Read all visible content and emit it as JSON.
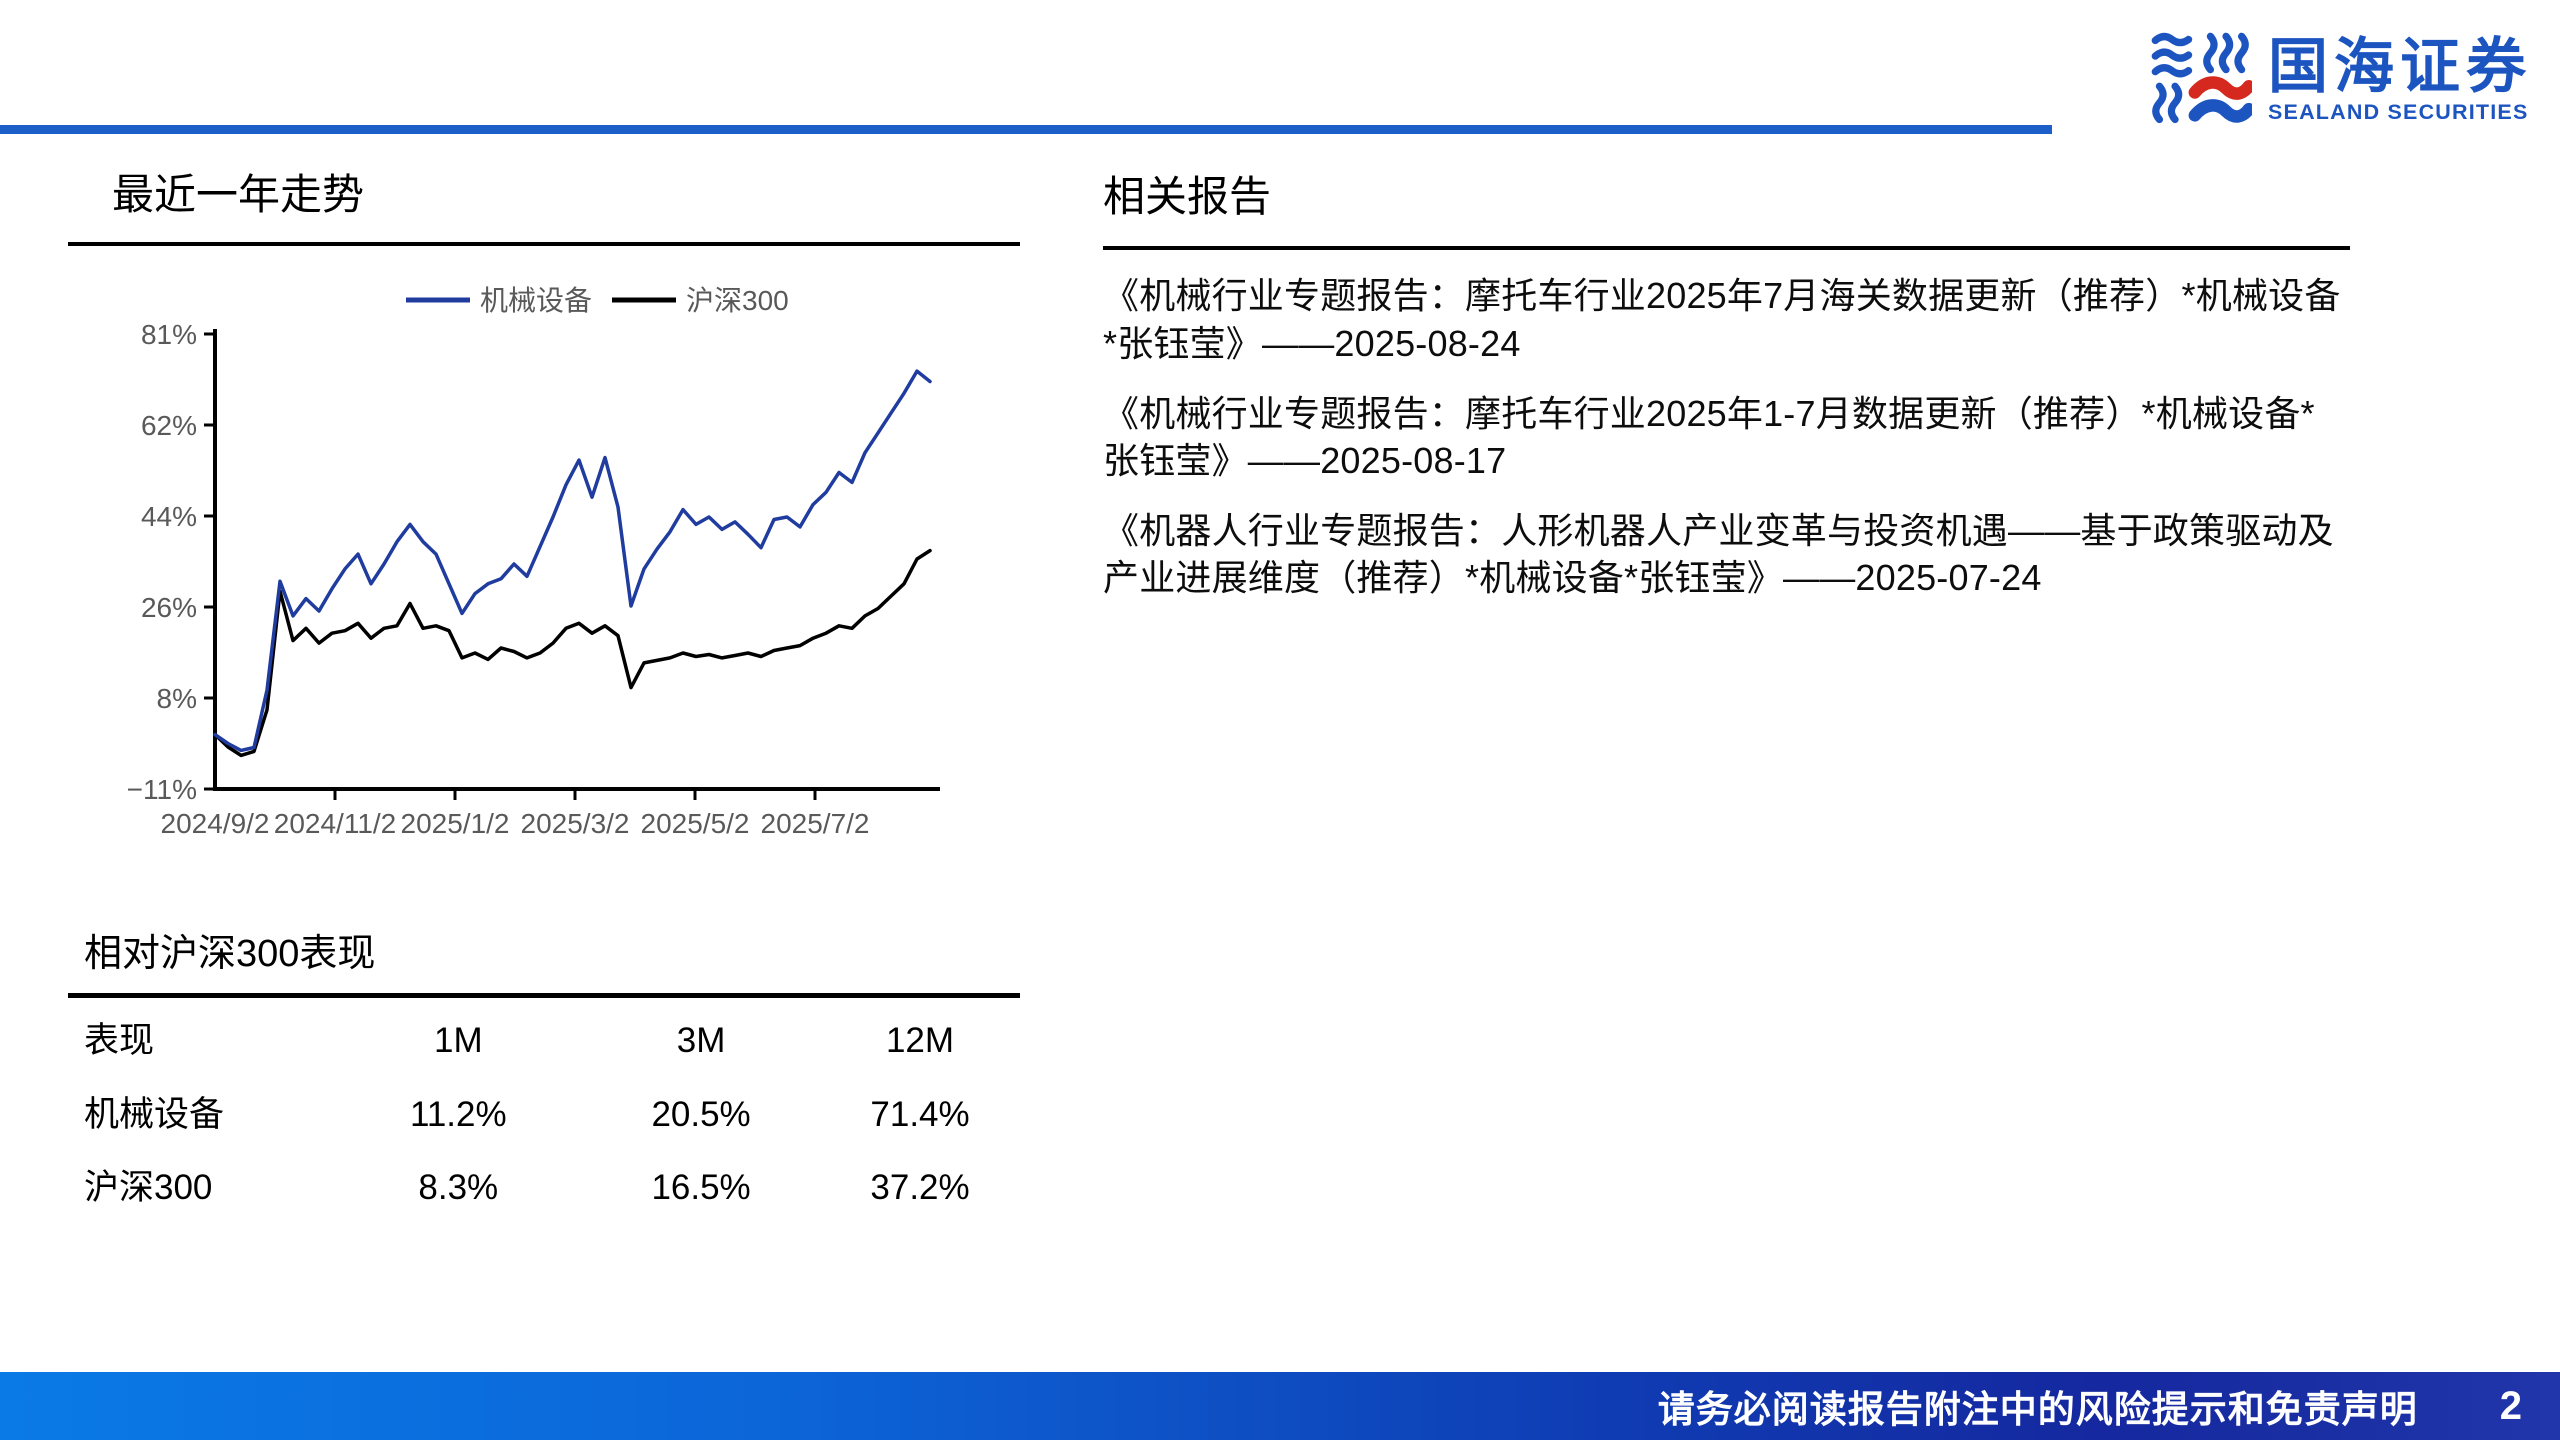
{
  "brand": {
    "name_cn": "国海证券",
    "name_en": "SEALAND SECURITIES",
    "logo_blue": "#1d55c0",
    "logo_red": "#d5281e",
    "header_rule_color": "#1c5fc8"
  },
  "left": {
    "section_title": "最近一年走势",
    "table": {
      "title": "相对沪深300表现",
      "headers": [
        "表现",
        "1M",
        "3M",
        "12M"
      ],
      "rows": [
        {
          "label": "机械设备",
          "values": [
            "11.2%",
            "20.5%",
            "71.4%"
          ]
        },
        {
          "label": "沪深300",
          "values": [
            "8.3%",
            "16.5%",
            "37.2%"
          ]
        }
      ]
    }
  },
  "right": {
    "section_title": "相关报告",
    "reports": [
      "《机械行业专题报告：摩托车行业2025年7月海关数据更新（推荐）*机械设备*张钰莹》——2025-08-24",
      "《机械行业专题报告：摩托车行业2025年1-7月数据更新（推荐）*机械设备*张钰莹》——2025-08-17",
      "《机器人行业专题报告：人形机器人产业变革与投资机遇——基于政策驱动及产业进展维度（推荐）*机械设备*张钰莹》——2025-07-24"
    ]
  },
  "footer": {
    "disclaimer": "请务必阅读报告附注中的风险提示和免责声明",
    "page_number": "2"
  },
  "chart_data": {
    "type": "line",
    "title": "最近一年走势",
    "xlabel": "",
    "ylabel": "",
    "grid": false,
    "legend_position": "top",
    "ylim": [
      -11,
      81
    ],
    "y_tick_labels": [
      "81%",
      "62%",
      "44%",
      "26%",
      "8%",
      "−11%"
    ],
    "x_tick_labels": [
      "2024/9/2",
      "2024/11/2",
      "2025/1/2",
      "2025/3/2",
      "2025/5/2",
      "2025/7/2"
    ],
    "x_range_note": "weekly points from 2024/9/2 to 2025/8/29",
    "series": [
      {
        "name": "机械设备",
        "color": "#1f3c9e",
        "values": [
          0,
          -1.8,
          -3.2,
          -2.6,
          9,
          31,
          24,
          27.5,
          25,
          29.5,
          33.5,
          36.5,
          30.5,
          34.5,
          39,
          42.5,
          39,
          36.5,
          30.5,
          24.5,
          28.5,
          30.5,
          31.5,
          34.5,
          32,
          38,
          44,
          50.5,
          55.5,
          48,
          56,
          46,
          26,
          33.5,
          37.5,
          41,
          45.5,
          42.5,
          44,
          41.5,
          43,
          40.5,
          37.8,
          43.5,
          44,
          42,
          46.5,
          49,
          53,
          51,
          57,
          61,
          65,
          69,
          73.5,
          71.4
        ]
      },
      {
        "name": "沪深300",
        "color": "#000000",
        "values": [
          0,
          -2.5,
          -4.2,
          -3.4,
          5,
          29,
          19,
          21.5,
          18.5,
          20.5,
          21,
          22.5,
          19.5,
          21.5,
          22,
          26.5,
          21.5,
          22,
          21,
          15.5,
          16.5,
          15.2,
          17.5,
          16.8,
          15.5,
          16.5,
          18.5,
          21.5,
          22.5,
          20.5,
          22,
          20,
          9.5,
          14.5,
          15,
          15.5,
          16.5,
          15.8,
          16.2,
          15.5,
          16,
          16.5,
          15.8,
          17,
          17.5,
          18,
          19.5,
          20.5,
          22,
          21.5,
          24,
          25.5,
          28,
          30.5,
          35.5,
          37.2
        ]
      }
    ]
  }
}
